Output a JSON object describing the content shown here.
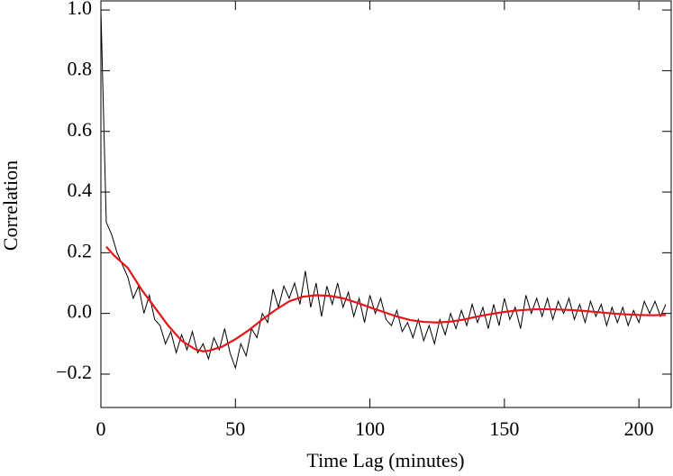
{
  "chart_data": {
    "type": "line",
    "x_label": "Time Lag (minutes)",
    "y_label": "Correlation",
    "xlim": [
      0,
      212
    ],
    "ylim": [
      -0.31,
      1.03
    ],
    "xticks": [
      0,
      50,
      100,
      150,
      200
    ],
    "yticks": [
      {
        "value": -0.2,
        "label": "−0.2"
      },
      {
        "value": 0,
        "label": "0.0"
      },
      0.2,
      0.4,
      0.6,
      0.8,
      {
        "value": 1,
        "label": "1.0"
      }
    ],
    "series": [
      {
        "color": "#000000",
        "x": [
          0,
          2,
          4,
          6,
          8,
          10,
          12,
          14,
          16,
          18,
          20,
          22,
          24,
          26,
          28,
          30,
          32,
          34,
          36,
          38,
          40,
          42,
          44,
          46,
          48,
          50,
          52,
          54,
          56,
          58,
          60,
          62,
          64,
          66,
          68,
          70,
          72,
          74,
          76,
          78,
          80,
          82,
          84,
          86,
          88,
          90,
          92,
          94,
          96,
          98,
          100,
          102,
          104,
          106,
          108,
          110,
          112,
          114,
          116,
          118,
          120,
          122,
          124,
          126,
          128,
          130,
          132,
          134,
          136,
          138,
          140,
          142,
          144,
          146,
          148,
          150,
          152,
          154,
          156,
          158,
          160,
          162,
          164,
          166,
          168,
          170,
          172,
          174,
          176,
          178,
          180,
          182,
          184,
          186,
          188,
          190,
          192,
          194,
          196,
          198,
          200,
          202,
          204,
          206,
          208,
          210
        ],
        "values": [
          1.0,
          0.3,
          0.26,
          0.2,
          0.16,
          0.12,
          0.05,
          0.09,
          0.0,
          0.06,
          -0.02,
          -0.04,
          -0.1,
          -0.06,
          -0.13,
          -0.07,
          -0.12,
          -0.06,
          -0.13,
          -0.1,
          -0.15,
          -0.08,
          -0.12,
          -0.05,
          -0.13,
          -0.18,
          -0.1,
          -0.14,
          -0.05,
          -0.08,
          0.0,
          -0.03,
          0.08,
          0.02,
          0.09,
          0.05,
          0.1,
          0.03,
          0.14,
          0.02,
          0.1,
          -0.01,
          0.09,
          0.03,
          0.1,
          0.02,
          0.07,
          -0.01,
          0.05,
          -0.03,
          0.06,
          0.0,
          0.05,
          -0.02,
          -0.04,
          0.01,
          -0.06,
          -0.03,
          -0.08,
          -0.02,
          -0.09,
          -0.04,
          -0.1,
          -0.02,
          -0.07,
          0.0,
          -0.05,
          0.01,
          -0.04,
          0.03,
          -0.03,
          0.02,
          -0.05,
          0.03,
          -0.04,
          0.05,
          -0.02,
          0.02,
          -0.05,
          0.06,
          0.0,
          0.05,
          -0.01,
          0.05,
          -0.02,
          0.04,
          0.0,
          0.05,
          -0.02,
          0.03,
          -0.03,
          0.04,
          -0.01,
          0.03,
          -0.04,
          0.02,
          -0.03,
          0.02,
          -0.04,
          0.01,
          -0.03,
          0.04,
          0.0,
          0.04,
          -0.01,
          0.03
        ]
      },
      {
        "color": "#e8141a",
        "x": [
          2,
          5,
          10,
          15,
          20,
          25,
          30,
          35,
          38,
          40,
          45,
          50,
          55,
          60,
          65,
          70,
          75,
          80,
          85,
          90,
          95,
          100,
          105,
          110,
          115,
          120,
          125,
          130,
          135,
          140,
          145,
          150,
          155,
          160,
          165,
          170,
          175,
          180,
          185,
          190,
          195,
          200,
          205,
          210
        ],
        "values": [
          0.22,
          0.19,
          0.15,
          0.08,
          0.02,
          -0.04,
          -0.09,
          -0.118,
          -0.125,
          -0.123,
          -0.11,
          -0.085,
          -0.055,
          -0.02,
          0.012,
          0.04,
          0.055,
          0.06,
          0.058,
          0.05,
          0.036,
          0.02,
          0.005,
          -0.01,
          -0.022,
          -0.028,
          -0.03,
          -0.027,
          -0.02,
          -0.01,
          -0.002,
          0.005,
          0.01,
          0.013,
          0.014,
          0.013,
          0.011,
          0.008,
          0.004,
          0.0,
          -0.003,
          -0.005,
          -0.006,
          -0.005
        ]
      }
    ]
  }
}
